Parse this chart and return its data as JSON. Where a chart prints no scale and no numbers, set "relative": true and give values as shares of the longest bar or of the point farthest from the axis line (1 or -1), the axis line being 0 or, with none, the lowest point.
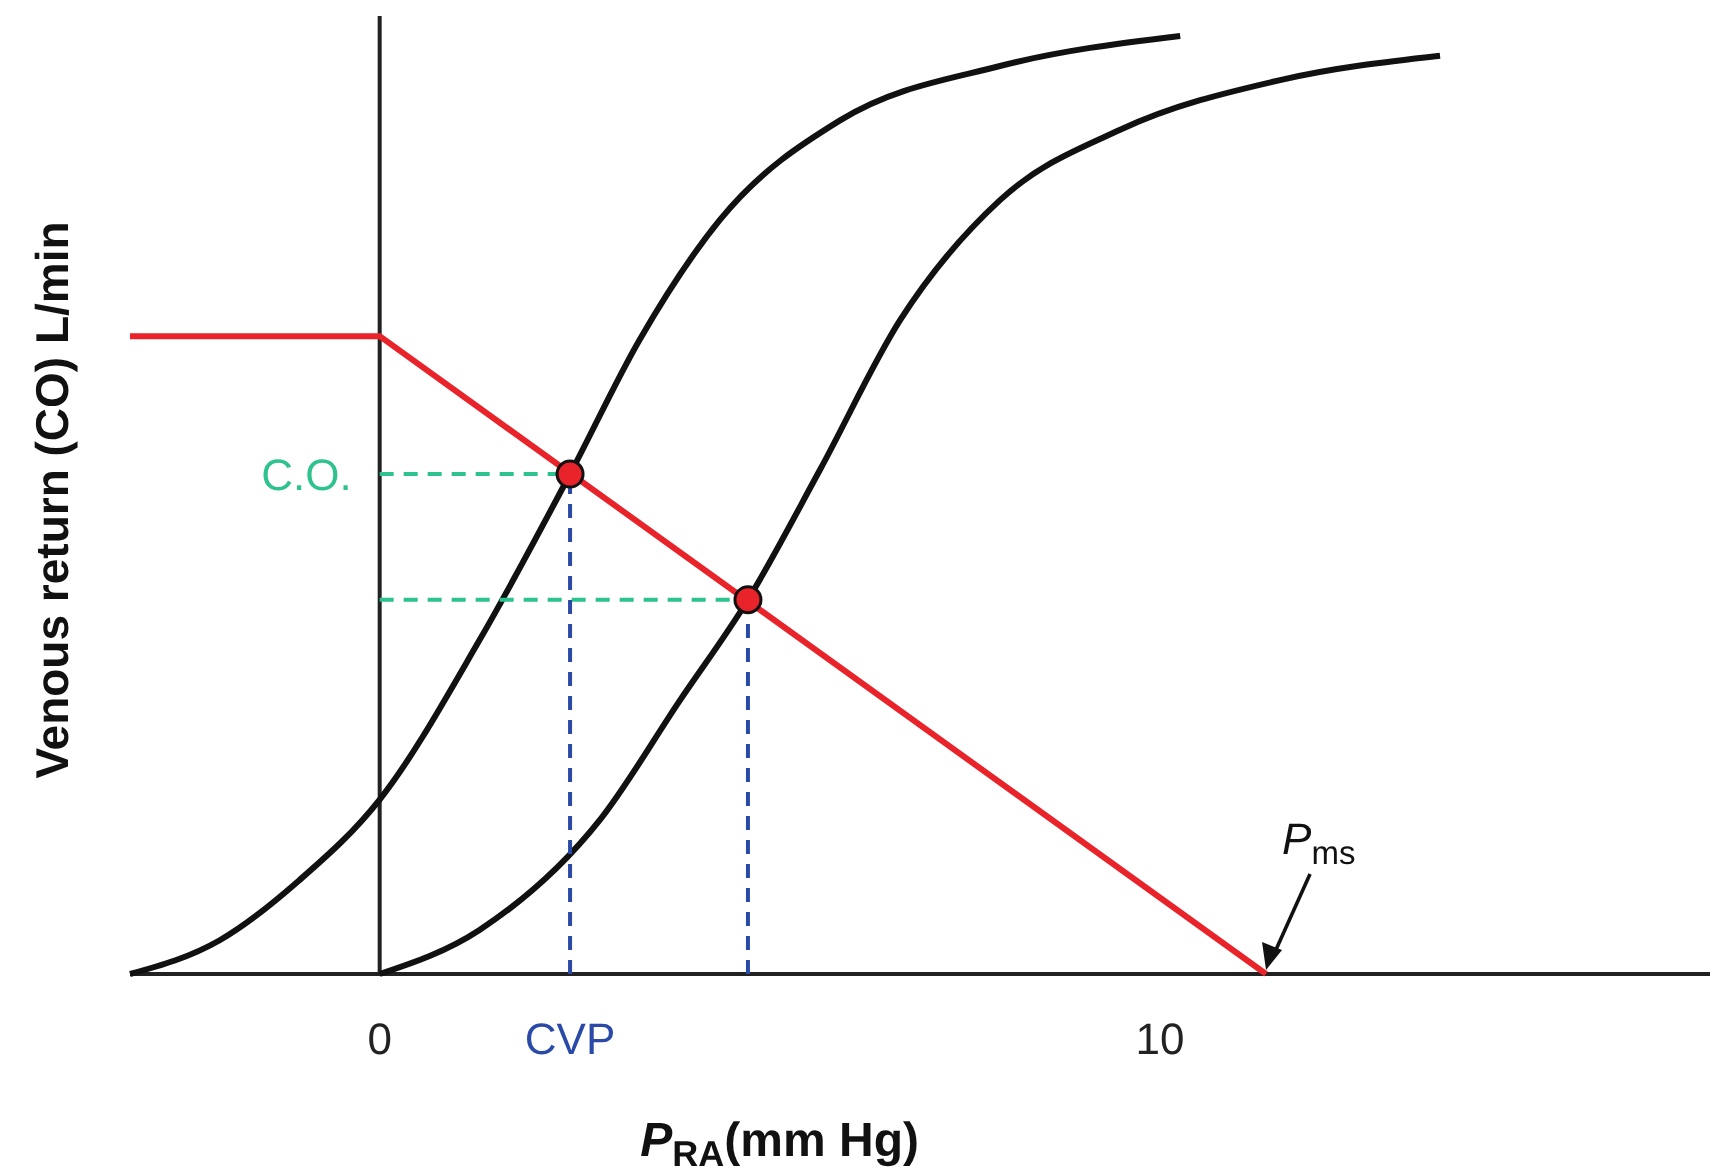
{
  "chart_data": {
    "type": "line",
    "relative": true,
    "xlabel": "P$_{RA}$(mm Hg)",
    "ylabel": "Venous return (CO) L/min",
    "xlim": [
      -3.2,
      17.05
    ],
    "xticks": [
      0,
      10
    ],
    "series": [
      {
        "color": "#e8232a",
        "x": [
          -3.2,
          0,
          11.36
        ],
        "values": [
          0.68,
          0.68,
          0
        ]
      },
      {
        "color": "#111111",
        "x": [
          -3.2,
          -2.05,
          -1.03,
          0,
          1.28,
          2.44,
          3.33,
          4.36,
          5.9,
          7.95,
          10.26
        ],
        "values": [
          0,
          0.036,
          0.1,
          0.186,
          0.356,
          0.533,
          0.676,
          0.804,
          0.91,
          0.968,
          1
        ]
      },
      {
        "color": "#111111",
        "x": [
          0,
          1.28,
          2.82,
          3.85,
          4.72,
          5.64,
          6.67,
          7.95,
          9.49,
          11.54,
          13.59
        ],
        "values": [
          0,
          0.047,
          0.164,
          0.292,
          0.399,
          0.537,
          0.697,
          0.825,
          0.9,
          0.953,
          0.979
        ]
      },
      {
        "color": "#2ec28e",
        "line_style": "dashed",
        "x": [
          0,
          2.44
        ],
        "values": [
          0.533,
          0.533
        ]
      },
      {
        "color": "#2ec28e",
        "line_style": "dashed",
        "x": [
          0,
          4.72
        ],
        "values": [
          0.399,
          0.399
        ]
      },
      {
        "color": "#2b4aa8",
        "line_style": "dashed",
        "x": [
          2.44,
          2.44
        ],
        "values": [
          0,
          0.533
        ]
      },
      {
        "color": "#2b4aa8",
        "line_style": "dashed",
        "x": [
          4.72,
          4.72
        ],
        "values": [
          0,
          0.399
        ]
      },
      {
        "type": "scatter",
        "marker": "circle",
        "color": "#e8232a",
        "x": [
          2.44,
          4.72
        ],
        "values": [
          0.533,
          0.399
        ]
      }
    ],
    "annotations": [
      {
        "text": "C.O.",
        "x": 0,
        "y": 0.533
      },
      {
        "text": "CVP",
        "x": 2.44,
        "y": 0
      },
      {
        "text": "P$_{ms}$",
        "x": 11.36,
        "y": 0
      }
    ]
  }
}
